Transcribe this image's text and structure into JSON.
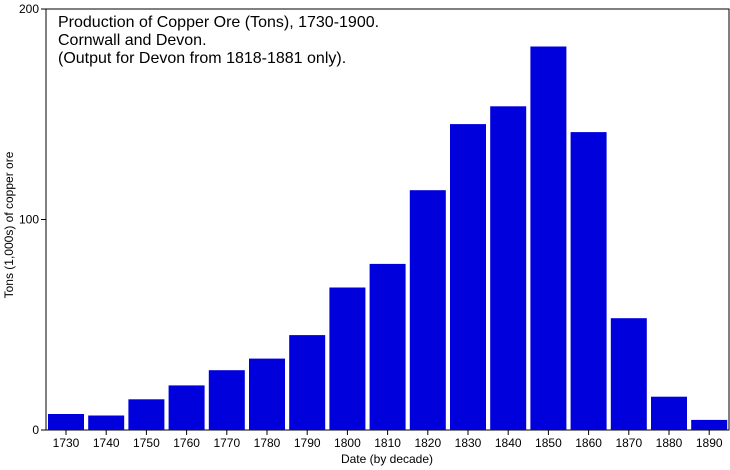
{
  "chart_data": {
    "type": "bar",
    "title_lines": [
      "Production of Copper Ore (Tons), 1730-1900.",
      "Cornwall and Devon.",
      "(Output for Devon from 1818-1881 only)."
    ],
    "xlabel": "Date (by decade)",
    "ylabel": "Tons (1,000s) of copper ore",
    "categories": [
      "1730",
      "1740",
      "1750",
      "1760",
      "1770",
      "1780",
      "1790",
      "1800",
      "1810",
      "1820",
      "1830",
      "1840",
      "1850",
      "1860",
      "1870",
      "1880",
      "1890"
    ],
    "values": [
      7.6,
      6.9,
      14.6,
      21.2,
      28.4,
      33.9,
      45.1,
      67.7,
      78.9,
      113.9,
      145.3,
      153.8,
      182.2,
      141.5,
      53.1,
      15.8,
      4.8
    ],
    "ylim": [
      0,
      200
    ],
    "yticks": [
      0,
      100,
      200
    ],
    "bar_color": "#0000dd",
    "grid": false,
    "legend": "none"
  }
}
